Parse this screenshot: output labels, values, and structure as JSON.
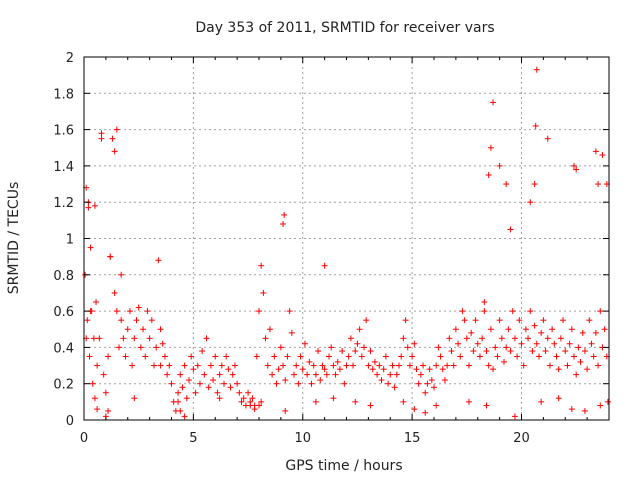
{
  "chart_data": {
    "type": "scatter",
    "title": "Day 353 of 2011, SRMTID for receiver vars",
    "xlabel": "GPS time / hours",
    "ylabel": "SRMTID / TECUs",
    "xlim": [
      0,
      24
    ],
    "ylim": [
      0,
      2
    ],
    "xticks": [
      0,
      5,
      10,
      15,
      20
    ],
    "xtick_labels": [
      "0",
      "5",
      "10",
      "15",
      "20"
    ],
    "yticks": [
      0,
      0.2,
      0.4,
      0.6,
      0.8,
      1,
      1.2,
      1.4,
      1.6,
      1.8,
      2
    ],
    "ytick_labels": [
      "0",
      "0.2",
      "0.4",
      "0.6",
      "0.8",
      "1",
      "1.2",
      "1.4",
      "1.6",
      "1.8",
      "2"
    ],
    "grid": true,
    "marker": "+",
    "color": "#ff0000",
    "series": [
      {
        "name": "SRMTID",
        "x": [
          0.05,
          0.1,
          0.15,
          0.2,
          0.25,
          0.3,
          0.35,
          0.4,
          0.45,
          0.5,
          0.55,
          0.6,
          0.7,
          0.8,
          0.9,
          1.0,
          1.1,
          1.2,
          1.3,
          1.4,
          1.5,
          1.6,
          1.7,
          1.8,
          1.9,
          2.0,
          2.1,
          2.2,
          2.3,
          2.4,
          2.5,
          2.6,
          2.7,
          2.8,
          2.9,
          3.0,
          3.1,
          3.2,
          3.3,
          3.4,
          3.5,
          3.6,
          3.7,
          3.8,
          3.9,
          4.0,
          4.1,
          4.2,
          4.3,
          4.4,
          4.5,
          4.6,
          4.7,
          4.8,
          4.9,
          5.0,
          5.1,
          5.2,
          5.3,
          5.4,
          5.5,
          5.6,
          5.7,
          5.8,
          5.9,
          6.0,
          6.1,
          6.2,
          6.3,
          6.4,
          6.5,
          6.6,
          6.7,
          6.8,
          6.9,
          7.0,
          7.1,
          7.2,
          7.3,
          7.4,
          7.5,
          7.6,
          7.7,
          7.8,
          7.9,
          8.0,
          8.1,
          8.2,
          8.3,
          8.4,
          8.5,
          8.6,
          8.7,
          8.8,
          8.9,
          9.0,
          9.1,
          9.2,
          9.3,
          9.4,
          9.5,
          9.6,
          9.7,
          9.8,
          9.9,
          10.0,
          10.1,
          10.2,
          10.3,
          10.4,
          10.5,
          10.6,
          10.7,
          10.8,
          10.9,
          11.0,
          11.1,
          11.2,
          11.3,
          11.4,
          11.5,
          11.6,
          11.7,
          11.8,
          11.9,
          12.0,
          12.1,
          12.2,
          12.3,
          12.4,
          12.5,
          12.6,
          12.7,
          12.8,
          12.9,
          13.0,
          13.1,
          13.2,
          13.3,
          13.4,
          13.5,
          13.6,
          13.7,
          13.8,
          13.9,
          14.0,
          14.1,
          14.2,
          14.3,
          14.4,
          14.5,
          14.6,
          14.7,
          14.8,
          14.9,
          15.0,
          15.1,
          15.2,
          15.3,
          15.4,
          15.5,
          15.6,
          15.7,
          15.8,
          15.9,
          16.0,
          16.1,
          16.2,
          16.3,
          16.4,
          16.5,
          16.6,
          16.7,
          16.8,
          16.9,
          17.0,
          17.1,
          17.2,
          17.3,
          17.4,
          17.5,
          17.6,
          17.7,
          17.8,
          17.9,
          18.0,
          18.1,
          18.2,
          18.3,
          18.4,
          18.5,
          18.6,
          18.7,
          18.8,
          18.9,
          19.0,
          19.1,
          19.2,
          19.3,
          19.4,
          19.5,
          19.6,
          19.7,
          19.8,
          19.9,
          20.0,
          20.1,
          20.2,
          20.3,
          20.4,
          20.5,
          20.6,
          20.7,
          20.8,
          20.9,
          21.0,
          21.1,
          21.2,
          21.3,
          21.4,
          21.5,
          21.6,
          21.7,
          21.8,
          21.9,
          22.0,
          22.1,
          22.2,
          22.3,
          22.4,
          22.5,
          22.6,
          22.7,
          22.8,
          22.9,
          23.0,
          23.1,
          23.2,
          23.3,
          23.4,
          23.5,
          23.6,
          23.7,
          23.8,
          23.9,
          0.1,
          0.3,
          0.5,
          0.8,
          1.2,
          1.4,
          1.5,
          1.7,
          9.1,
          9.15,
          11.0,
          18.3,
          18.5,
          18.6,
          18.7,
          19.0,
          19.3,
          19.5,
          20.4,
          20.6,
          20.65,
          20.7,
          21.2,
          22.4,
          22.5,
          23.4,
          23.5,
          23.7,
          23.9,
          0.2,
          0.6,
          1.0,
          1.1,
          2.3,
          3.5,
          4.3,
          4.4,
          4.6,
          6.2,
          7.6,
          7.8,
          8.0,
          8.1,
          9.2,
          10.6,
          11.4,
          12.4,
          13.1,
          14.6,
          15.1,
          15.6,
          16.1,
          17.6,
          18.4,
          19.7,
          20.9,
          21.7,
          22.3,
          22.9,
          23.6,
          23.95
        ],
        "y": [
          0.8,
          1.28,
          0.55,
          1.17,
          0.35,
          0.95,
          0.6,
          0.2,
          0.45,
          0.12,
          0.65,
          0.3,
          0.45,
          1.58,
          0.25,
          0.15,
          0.35,
          0.9,
          1.55,
          0.7,
          0.6,
          0.4,
          0.55,
          0.45,
          0.35,
          0.5,
          0.6,
          0.3,
          0.45,
          0.55,
          0.62,
          0.4,
          0.5,
          0.35,
          0.6,
          0.45,
          0.55,
          0.3,
          0.4,
          0.88,
          0.5,
          0.42,
          0.35,
          0.25,
          0.3,
          0.2,
          0.1,
          0.05,
          0.15,
          0.25,
          0.18,
          0.3,
          0.12,
          0.22,
          0.35,
          0.28,
          0.15,
          0.3,
          0.2,
          0.38,
          0.25,
          0.45,
          0.18,
          0.3,
          0.22,
          0.35,
          0.15,
          0.25,
          0.3,
          0.2,
          0.35,
          0.28,
          0.18,
          0.25,
          0.3,
          0.2,
          0.15,
          0.1,
          0.12,
          0.08,
          0.15,
          0.1,
          0.12,
          0.08,
          0.35,
          0.6,
          0.85,
          0.7,
          0.45,
          0.3,
          0.5,
          0.25,
          0.35,
          0.2,
          0.28,
          0.4,
          0.3,
          0.22,
          0.35,
          0.6,
          0.48,
          0.25,
          0.3,
          0.2,
          0.35,
          0.28,
          0.42,
          0.25,
          0.32,
          0.2,
          0.3,
          0.25,
          0.38,
          0.22,
          0.3,
          0.28,
          0.25,
          0.35,
          0.4,
          0.3,
          0.25,
          0.32,
          0.28,
          0.38,
          0.2,
          0.3,
          0.35,
          0.45,
          0.3,
          0.38,
          0.42,
          0.5,
          0.35,
          0.4,
          0.55,
          0.3,
          0.38,
          0.28,
          0.32,
          0.25,
          0.3,
          0.22,
          0.28,
          0.35,
          0.2,
          0.25,
          0.3,
          0.18,
          0.25,
          0.3,
          0.35,
          0.45,
          0.55,
          0.4,
          0.3,
          0.35,
          0.42,
          0.28,
          0.2,
          0.25,
          0.3,
          0.15,
          0.2,
          0.28,
          0.22,
          0.18,
          0.3,
          0.4,
          0.35,
          0.28,
          0.22,
          0.3,
          0.45,
          0.38,
          0.3,
          0.5,
          0.42,
          0.35,
          0.6,
          0.55,
          0.45,
          0.3,
          0.48,
          0.38,
          0.55,
          0.42,
          0.35,
          0.45,
          0.6,
          0.38,
          0.3,
          0.5,
          0.28,
          0.4,
          0.35,
          0.55,
          0.45,
          0.32,
          0.4,
          0.5,
          0.38,
          0.6,
          0.45,
          0.35,
          0.55,
          0.42,
          0.3,
          0.5,
          0.45,
          0.6,
          0.38,
          0.52,
          0.42,
          0.35,
          0.48,
          0.55,
          0.38,
          0.45,
          0.3,
          0.5,
          0.42,
          0.35,
          0.28,
          0.45,
          0.55,
          0.38,
          0.3,
          0.42,
          0.5,
          0.35,
          0.25,
          0.4,
          0.32,
          0.48,
          0.38,
          0.28,
          0.55,
          0.42,
          0.35,
          0.48,
          0.3,
          0.6,
          0.4,
          0.5,
          0.35,
          0.45,
          0.6,
          1.18,
          1.55,
          0.9,
          1.48,
          1.6,
          0.8,
          1.08,
          1.13,
          0.85,
          0.65,
          1.35,
          1.5,
          1.75,
          1.4,
          1.3,
          1.05,
          1.2,
          1.3,
          1.62,
          1.93,
          1.55,
          1.4,
          1.38,
          1.48,
          1.3,
          1.46,
          1.3,
          1.2,
          0.06,
          0.02,
          0.05,
          0.12,
          0.3,
          0.1,
          0.05,
          0.02,
          0.12,
          0.08,
          0.06,
          0.08,
          0.1,
          0.05,
          0.1,
          0.12,
          0.1,
          0.08,
          0.1,
          0.06,
          0.04,
          0.08,
          0.1,
          0.08,
          0.02,
          0.1,
          0.12,
          0.06,
          0.05,
          0.08,
          0.1
        ]
      }
    ]
  }
}
